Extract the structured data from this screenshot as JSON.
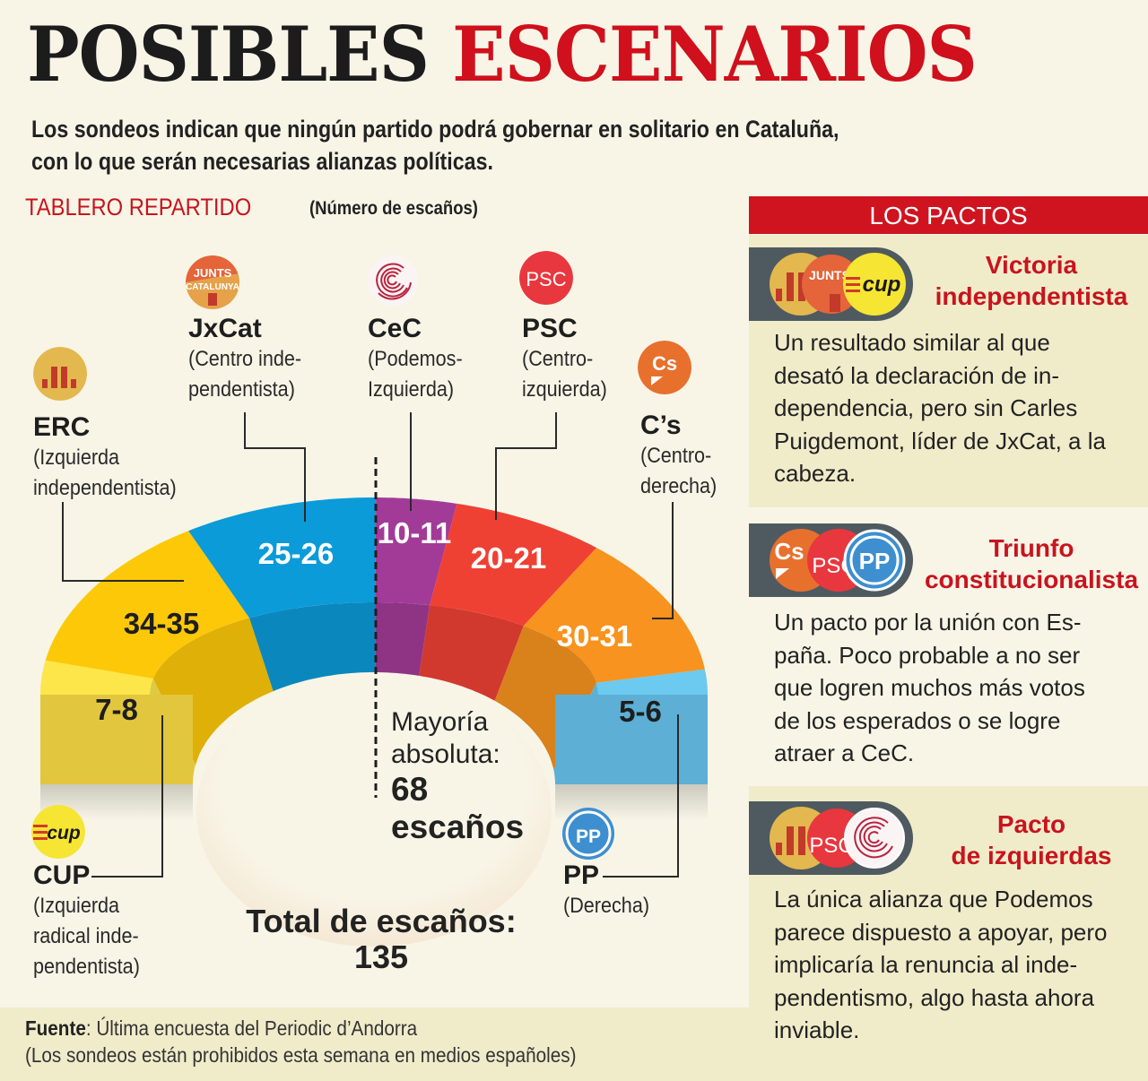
{
  "header": {
    "title_part1": "POSIBLES",
    "title_part2": "ESCENARIOS",
    "subtitle_line1": "Los sondeos indican que ningún partido podrá gobernar en solitario en Cataluña,",
    "subtitle_line2": "con lo que serán necesarias alianzas políticas."
  },
  "section": {
    "title": "TABLERO REPARTIDO",
    "subtitle": "(Número de escaños)"
  },
  "parties": [
    {
      "key": "erc",
      "name": "ERC",
      "desc1": "(Izquierda",
      "desc2": "independentista)",
      "logo": "erc-logo-icon"
    },
    {
      "key": "jxcat",
      "name": "JxCat",
      "desc1": "(Centro inde-",
      "desc2": "pendentista)",
      "logo": "junts-per-catalunya-logo-icon",
      "logo_text1": "JUNTS",
      "logo_text2": "CATALUNYA"
    },
    {
      "key": "cec",
      "name": "CeC",
      "desc1": "(Podemos-",
      "desc2": "Izquierda)",
      "logo": "cec-logo-icon"
    },
    {
      "key": "psc",
      "name": "PSC",
      "desc1": "(Centro-",
      "desc2": "izquierda)",
      "logo": "psc-logo-icon",
      "logo_text": "PSC"
    },
    {
      "key": "cs",
      "name": "C’s",
      "desc1": "(Centro-",
      "desc2": "derecha)",
      "logo": "ciudadanos-logo-icon",
      "logo_text": "Cs"
    },
    {
      "key": "cup",
      "name": "CUP",
      "desc1": "(Izquierda",
      "desc2": "radical inde-",
      "desc3": "pendentista)",
      "logo": "cup-logo-icon",
      "logo_text": "cup"
    },
    {
      "key": "pp",
      "name": "PP",
      "desc1": "(Derecha)",
      "logo": "pp-logo-icon",
      "logo_text": "PP"
    }
  ],
  "chart_data": {
    "type": "semicircle-parliament",
    "title": "TABLERO REPARTIDO",
    "subtitle": "(Número de escaños)",
    "total_seats": 135,
    "majority": 68,
    "order": "left-to-right",
    "series": [
      {
        "party": "CUP",
        "label": "7-8",
        "min": 7,
        "max": 8,
        "color": "#fde64a"
      },
      {
        "party": "ERC",
        "label": "34-35",
        "min": 34,
        "max": 35,
        "color": "#fdc808"
      },
      {
        "party": "JxCat",
        "label": "25-26",
        "min": 25,
        "max": 26,
        "color": "#0b9bd8"
      },
      {
        "party": "CeC",
        "label": "10-11",
        "min": 10,
        "max": 11,
        "color": "#a23b97"
      },
      {
        "party": "PSC",
        "label": "20-21",
        "min": 20,
        "max": 21,
        "color": "#ee4134"
      },
      {
        "party": "C’s",
        "label": "30-31",
        "min": 30,
        "max": 31,
        "color": "#f7931e"
      },
      {
        "party": "PP",
        "label": "5-6",
        "min": 5,
        "max": 6,
        "color": "#6cc9ef"
      }
    ],
    "majority_text1": "Mayoría",
    "majority_text2": "absoluta:",
    "majority_value": "68",
    "majority_unit": "escaños",
    "total_label": "Total de escaños:",
    "total_value": "135"
  },
  "footer": {
    "source_label": "Fuente",
    "source_text": ": Última encuesta del Periodic d’Andorra",
    "note": "(Los sondeos están prohibidos esta semana en medios españoles)"
  },
  "sidebar": {
    "header": "LOS PACTOS",
    "pacts": [
      {
        "title1": "Victoria",
        "title2": "independentista",
        "logos": [
          "erc-logo-icon",
          "junts-per-catalunya-logo-icon",
          "cup-logo-icon"
        ],
        "lines": [
          "Un resultado similar al que",
          "desató la declaración de in-",
          "dependencia, pero sin Carles",
          "Puigdemont, líder de JxCat, a la",
          "cabeza."
        ]
      },
      {
        "title1": "Triunfo",
        "title2": "constitucionalista",
        "logos": [
          "ciudadanos-logo-icon",
          "psc-logo-icon",
          "pp-logo-icon"
        ],
        "lines": [
          "Un pacto por la unión con Es-",
          "paña. Poco probable a no ser",
          "que logren muchos más votos",
          "de los esperados o se logre",
          "atraer a CeC."
        ]
      },
      {
        "title1": "Pacto",
        "title2": "de izquierdas",
        "logos": [
          "erc-logo-icon",
          "psc-logo-icon",
          "cec-logo-icon"
        ],
        "lines": [
          "La única alianza que Podemos",
          "parece dispuesto a apoyar, pero",
          "implicaría la renuncia al inde-",
          "pendentismo, algo hasta ahora",
          "inviable."
        ]
      }
    ]
  },
  "colors": {
    "accent_red": "#cf1420",
    "background": "#f8f5e7",
    "panel_tan": "#f0ecca",
    "badge_gray": "#4e5a60"
  }
}
